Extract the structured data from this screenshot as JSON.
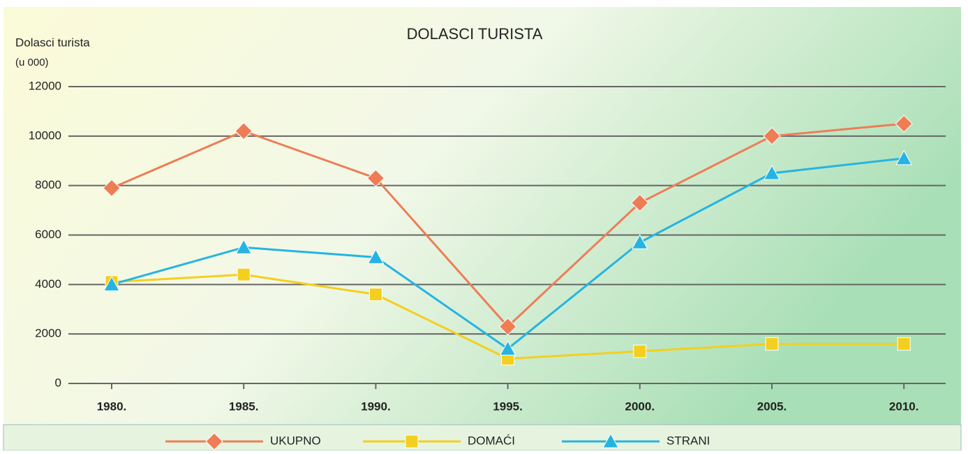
{
  "chart_data": {
    "type": "line",
    "title": "DOLASCI TURISTA",
    "y_label": [
      "Dolasci turista",
      "(u 000)"
    ],
    "categories": [
      "1980.",
      "1985.",
      "1990.",
      "1995.",
      "2000.",
      "2005.",
      "2010."
    ],
    "series": [
      {
        "name": "UKUPNO",
        "color": "#ee7d55",
        "marker": "diamond",
        "values": [
          7900,
          10200,
          8300,
          2300,
          7300,
          10000,
          10500
        ]
      },
      {
        "name": "DOMAĆI",
        "color": "#f4cf1f",
        "marker": "square",
        "values": [
          4100,
          4400,
          3600,
          1000,
          1300,
          1600,
          1600
        ]
      },
      {
        "name": "STRANI",
        "color": "#25b4e2",
        "marker": "triangle",
        "values": [
          4000,
          5500,
          5100,
          1400,
          5700,
          8500,
          9100
        ]
      }
    ],
    "ylim": [
      0,
      12000
    ],
    "yticks": [
      0,
      2000,
      4000,
      6000,
      8000,
      10000,
      12000
    ],
    "grid": true,
    "legend": "bottom"
  }
}
